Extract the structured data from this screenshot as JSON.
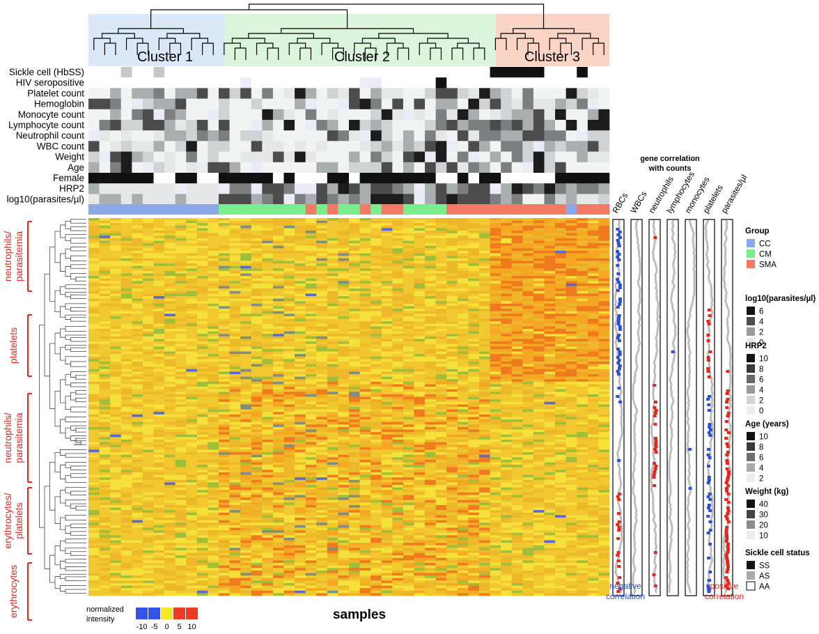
{
  "clusters": [
    {
      "label": "Cluster 1",
      "color": "#dbe8f7"
    },
    {
      "label": "Cluster 2",
      "color": "#dbf5dc"
    },
    {
      "label": "Cluster 3",
      "color": "#f9d3c3"
    }
  ],
  "annotation_rows": [
    "Sickle cell (HbSS)",
    "HIV seropositive",
    "Platelet count",
    "Hemoglobin",
    "Monocyte count",
    "Lymphocyte count",
    "Neutrophil count",
    "WBC count",
    "Weight",
    "Age",
    "Female",
    "HRP2",
    "log10(parasites/µl)"
  ],
  "group_colors": {
    "CC": "#8aa9e8",
    "CM": "#79ee8f",
    "SMA": "#f57a64"
  },
  "gene_modules": [
    "neutrophils/ parasitemia",
    "platelets",
    "neutrophils/ parasitemia",
    "erythrocytes/ platelets",
    "erythrocytes"
  ],
  "correlation_header": "gene correlation with counts",
  "correlation_columns": [
    "RBCs",
    "WBCs",
    "neutrophils",
    "lymphocytes",
    "monocytes",
    "platelets",
    "parasites/µl"
  ],
  "negative_label": "negative correlation",
  "positive_label": "positive correlation",
  "negative_color": "#2c4fd6",
  "positive_color": "#e8251b",
  "xlabel": "samples",
  "intensity_legend": {
    "title": "normalized intensity",
    "ticks": [
      "-10",
      "-5",
      "0",
      "5",
      "10"
    ],
    "colors": [
      "#3354e8",
      "#3354e8",
      "#f5e72a",
      "#ef3b22",
      "#ef3b22"
    ]
  },
  "legends": [
    {
      "title": "Group",
      "items": [
        {
          "label": "CC",
          "color": "#8aa9e8"
        },
        {
          "label": "CM",
          "color": "#79ee8f"
        },
        {
          "label": "SMA",
          "color": "#f57a64"
        }
      ]
    },
    {
      "title": "log10(parasites/µl)",
      "items": [
        {
          "label": "6",
          "color": "#141414"
        },
        {
          "label": "4",
          "color": "#4d4d4d"
        },
        {
          "label": "2",
          "color": "#9a9a9a"
        },
        {
          "label": "0",
          "color": "#e8eaea"
        }
      ]
    },
    {
      "title": "HRP2",
      "items": [
        {
          "label": "10",
          "color": "#141414"
        },
        {
          "label": "8",
          "color": "#3a3a3a"
        },
        {
          "label": "6",
          "color": "#666"
        },
        {
          "label": "4",
          "color": "#999"
        },
        {
          "label": "2",
          "color": "#cfd3d3"
        },
        {
          "label": "0",
          "color": "#eceeee"
        }
      ]
    },
    {
      "title": "Age (years)",
      "items": [
        {
          "label": "10",
          "color": "#141414"
        },
        {
          "label": "8",
          "color": "#3a3a3a"
        },
        {
          "label": "6",
          "color": "#6e6e6e"
        },
        {
          "label": "4",
          "color": "#aaaaaa"
        },
        {
          "label": "2",
          "color": "#eceeee"
        }
      ]
    },
    {
      "title": "Weight (kg)",
      "items": [
        {
          "label": "40",
          "color": "#141414"
        },
        {
          "label": "30",
          "color": "#444"
        },
        {
          "label": "20",
          "color": "#8c8c8c"
        },
        {
          "label": "10",
          "color": "#eceeee"
        }
      ]
    },
    {
      "title": "Sickle cell status",
      "items": [
        {
          "label": "SS",
          "color": "#141414"
        },
        {
          "label": "AS",
          "color": "#aaaaaa"
        },
        {
          "label": "AA",
          "color": "#ffffff"
        }
      ]
    }
  ]
}
